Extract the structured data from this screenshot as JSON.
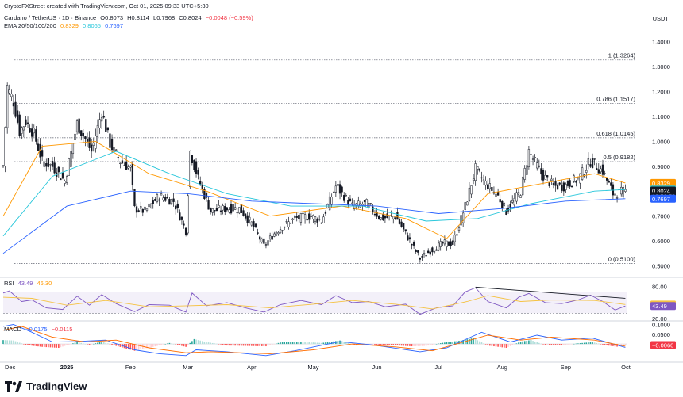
{
  "header": {
    "credit": "CryptoFXStreet created with TradingView.com, Oct 01, 2025 09:33 UTC+5:30",
    "symbol": "Cardano / TetherUS · 1D · Binance",
    "open": "O0.8073",
    "high": "H0.8114",
    "low": "L0.7968",
    "close": "C0.8024",
    "change": "−0.0048 (−0.59%)",
    "ema_label": "EMA 20/50/100/200",
    "ema_values": [
      "0.8329",
      "0.8065",
      "0.7697"
    ]
  },
  "currency": "USDT",
  "brand": "TradingView",
  "colors": {
    "up": "#131722",
    "down": "#131722",
    "ema20": "#ff9800",
    "ema50": "#26c6da",
    "ema100": "#2962ff",
    "ema200": "#3949ab",
    "rsi": "#7e57c2",
    "rsi_ma": "#f5c242",
    "macd": "#2962ff",
    "signal": "#ff6d00"
  },
  "chart_data": [
    {
      "type": "candlestick",
      "name": "Cardano / TetherUS 1D",
      "x_range": [
        "2024-12-01",
        "2025-10-01"
      ],
      "ylim": [
        0.47,
        1.44
      ],
      "yticks": [
        "1.4000",
        "1.3000",
        "1.2000",
        "1.1000",
        "1.0000",
        "0.9000",
        "0.8000",
        "0.7000",
        "0.6000",
        "0.5000"
      ],
      "xticks": [
        "Dec",
        "2025",
        "Feb",
        "Mar",
        "Apr",
        "May",
        "Jun",
        "Jul",
        "Aug",
        "Sep",
        "Oct"
      ],
      "close_path": [
        [
          "2024-12-01",
          0.9
        ],
        [
          "2024-12-03",
          1.22
        ],
        [
          "2024-12-06",
          1.16
        ],
        [
          "2024-12-09",
          1.04
        ],
        [
          "2024-12-12",
          1.08
        ],
        [
          "2024-12-16",
          1.03
        ],
        [
          "2024-12-20",
          0.92
        ],
        [
          "2024-12-25",
          0.9
        ],
        [
          "2024-12-31",
          0.84
        ],
        [
          "2025-01-06",
          1.07
        ],
        [
          "2025-01-13",
          0.96
        ],
        [
          "2025-01-18",
          1.12
        ],
        [
          "2025-01-22",
          0.99
        ],
        [
          "2025-01-27",
          0.92
        ],
        [
          "2025-02-01",
          0.89
        ],
        [
          "2025-02-03",
          0.73
        ],
        [
          "2025-02-08",
          0.72
        ],
        [
          "2025-02-15",
          0.78
        ],
        [
          "2025-02-22",
          0.76
        ],
        [
          "2025-02-28",
          0.64
        ],
        [
          "2025-03-02",
          0.96
        ],
        [
          "2025-03-06",
          0.85
        ],
        [
          "2025-03-12",
          0.72
        ],
        [
          "2025-03-19",
          0.73
        ],
        [
          "2025-03-26",
          0.73
        ],
        [
          "2025-04-01",
          0.67
        ],
        [
          "2025-04-07",
          0.58
        ],
        [
          "2025-04-13",
          0.64
        ],
        [
          "2025-04-22",
          0.69
        ],
        [
          "2025-04-30",
          0.7
        ],
        [
          "2025-05-05",
          0.68
        ],
        [
          "2025-05-12",
          0.82
        ],
        [
          "2025-05-20",
          0.74
        ],
        [
          "2025-05-27",
          0.75
        ],
        [
          "2025-06-03",
          0.69
        ],
        [
          "2025-06-10",
          0.7
        ],
        [
          "2025-06-17",
          0.6
        ],
        [
          "2025-06-22",
          0.53
        ],
        [
          "2025-06-27",
          0.56
        ],
        [
          "2025-07-03",
          0.59
        ],
        [
          "2025-07-08",
          0.59
        ],
        [
          "2025-07-14",
          0.74
        ],
        [
          "2025-07-19",
          0.89
        ],
        [
          "2025-07-23",
          0.84
        ],
        [
          "2025-07-30",
          0.78
        ],
        [
          "2025-08-03",
          0.72
        ],
        [
          "2025-08-10",
          0.8
        ],
        [
          "2025-08-14",
          0.96
        ],
        [
          "2025-08-20",
          0.87
        ],
        [
          "2025-08-26",
          0.82
        ],
        [
          "2025-08-31",
          0.82
        ],
        [
          "2025-09-07",
          0.85
        ],
        [
          "2025-09-13",
          0.92
        ],
        [
          "2025-09-19",
          0.88
        ],
        [
          "2025-09-24",
          0.79
        ],
        [
          "2025-09-30",
          0.8
        ]
      ],
      "series": [
        {
          "name": "EMA 20",
          "values": [
            [
              "2024-12-01",
              0.7
            ],
            [
              "2024-12-20",
              0.98
            ],
            [
              "2025-01-15",
              1.0
            ],
            [
              "2025-02-10",
              0.87
            ],
            [
              "2025-03-10",
              0.8
            ],
            [
              "2025-04-10",
              0.7
            ],
            [
              "2025-05-15",
              0.74
            ],
            [
              "2025-06-15",
              0.69
            ],
            [
              "2025-07-05",
              0.61
            ],
            [
              "2025-07-25",
              0.79
            ],
            [
              "2025-08-20",
              0.83
            ],
            [
              "2025-09-15",
              0.87
            ],
            [
              "2025-09-30",
              0.8329
            ]
          ]
        },
        {
          "name": "EMA 50",
          "values": [
            [
              "2024-12-01",
              0.62
            ],
            [
              "2024-12-25",
              0.86
            ],
            [
              "2025-01-25",
              0.96
            ],
            [
              "2025-02-20",
              0.87
            ],
            [
              "2025-03-20",
              0.79
            ],
            [
              "2025-04-20",
              0.74
            ],
            [
              "2025-05-25",
              0.74
            ],
            [
              "2025-06-25",
              0.68
            ],
            [
              "2025-07-20",
              0.69
            ],
            [
              "2025-08-15",
              0.75
            ],
            [
              "2025-09-15",
              0.8
            ],
            [
              "2025-09-30",
              0.8065
            ]
          ]
        },
        {
          "name": "EMA 100",
          "values": [
            [
              "2024-12-01",
              0.55
            ],
            [
              "2025-01-01",
              0.74
            ],
            [
              "2025-02-01",
              0.8
            ],
            [
              "2025-03-01",
              0.79
            ],
            [
              "2025-04-01",
              0.76
            ],
            [
              "2025-05-01",
              0.75
            ],
            [
              "2025-06-01",
              0.74
            ],
            [
              "2025-07-01",
              0.71
            ],
            [
              "2025-08-01",
              0.73
            ],
            [
              "2025-09-01",
              0.76
            ],
            [
              "2025-09-30",
              0.7697
            ]
          ]
        }
      ],
      "fibonacci": [
        {
          "label": "1 (1.3264)",
          "value": 1.3264
        },
        {
          "label": "0.786 (1.1517)",
          "value": 1.1517
        },
        {
          "label": "0.618 (1.0145)",
          "value": 1.0145
        },
        {
          "label": "0.5 (0.9182)",
          "value": 0.9182
        },
        {
          "label": "0 (0.5100)",
          "value": 0.51
        }
      ],
      "price_labels": [
        {
          "text": "0.8329",
          "value": 0.8329,
          "bg": "#ff9800",
          "fg": "#ffffff"
        },
        {
          "text": "0.8065",
          "value": 0.8065,
          "bg": "#26c6da",
          "fg": "#131722"
        },
        {
          "text": "0.8024",
          "value": 0.8024,
          "bg": "#131722",
          "fg": "#ffffff"
        },
        {
          "text": "19:56:53",
          "value": 0.7805,
          "bg": "#131722",
          "fg": "#ffffff"
        },
        {
          "text": "0.7697",
          "value": 0.7697,
          "bg": "#2962ff",
          "fg": "#ffffff"
        }
      ]
    },
    {
      "type": "line",
      "name": "RSI",
      "legend": [
        "RSI",
        "43.49",
        "46.30"
      ],
      "ylim": [
        20,
        90
      ],
      "yticks": [
        "80.00",
        "20.00"
      ],
      "band": [
        30,
        70
      ],
      "labels": [
        {
          "text": "46.30",
          "value": 46.3,
          "bg": "#f5c242",
          "fg": "#131722"
        },
        {
          "text": "43.49",
          "value": 43.49,
          "bg": "#7e57c2",
          "fg": "#ffffff"
        }
      ],
      "rsi": [
        [
          "2024-12-01",
          68
        ],
        [
          "2024-12-04",
          72
        ],
        [
          "2024-12-10",
          52
        ],
        [
          "2024-12-15",
          55
        ],
        [
          "2024-12-22",
          40
        ],
        [
          "2024-12-30",
          37
        ],
        [
          "2025-01-06",
          62
        ],
        [
          "2025-01-12",
          45
        ],
        [
          "2025-01-18",
          65
        ],
        [
          "2025-01-25",
          48
        ],
        [
          "2025-02-03",
          33
        ],
        [
          "2025-02-10",
          46
        ],
        [
          "2025-02-20",
          45
        ],
        [
          "2025-02-28",
          32
        ],
        [
          "2025-03-03",
          68
        ],
        [
          "2025-03-10",
          44
        ],
        [
          "2025-03-20",
          50
        ],
        [
          "2025-03-29",
          40
        ],
        [
          "2025-04-07",
          32
        ],
        [
          "2025-04-15",
          46
        ],
        [
          "2025-04-25",
          54
        ],
        [
          "2025-05-05",
          46
        ],
        [
          "2025-05-12",
          63
        ],
        [
          "2025-05-20",
          50
        ],
        [
          "2025-05-28",
          52
        ],
        [
          "2025-06-05",
          42
        ],
        [
          "2025-06-15",
          47
        ],
        [
          "2025-06-22",
          28
        ],
        [
          "2025-06-30",
          40
        ],
        [
          "2025-07-08",
          44
        ],
        [
          "2025-07-14",
          70
        ],
        [
          "2025-07-19",
          78
        ],
        [
          "2025-07-25",
          52
        ],
        [
          "2025-08-03",
          40
        ],
        [
          "2025-08-09",
          60
        ],
        [
          "2025-08-14",
          67
        ],
        [
          "2025-08-22",
          50
        ],
        [
          "2025-08-30",
          48
        ],
        [
          "2025-09-07",
          55
        ],
        [
          "2025-09-13",
          64
        ],
        [
          "2025-09-19",
          52
        ],
        [
          "2025-09-25",
          36
        ],
        [
          "2025-09-30",
          43.49
        ]
      ],
      "rsi_ma": [
        [
          "2024-12-01",
          60
        ],
        [
          "2024-12-15",
          58
        ],
        [
          "2025-01-01",
          45
        ],
        [
          "2025-01-20",
          54
        ],
        [
          "2025-02-10",
          42
        ],
        [
          "2025-03-01",
          44
        ],
        [
          "2025-03-20",
          46
        ],
        [
          "2025-04-10",
          40
        ],
        [
          "2025-05-01",
          47
        ],
        [
          "2025-05-20",
          54
        ],
        [
          "2025-06-10",
          47
        ],
        [
          "2025-06-28",
          38
        ],
        [
          "2025-07-15",
          52
        ],
        [
          "2025-07-25",
          63
        ],
        [
          "2025-08-10",
          52
        ],
        [
          "2025-08-25",
          55
        ],
        [
          "2025-09-15",
          54
        ],
        [
          "2025-09-30",
          46.3
        ]
      ],
      "trendline": [
        [
          "2025-07-19",
          79
        ],
        [
          "2025-09-30",
          58
        ]
      ]
    },
    {
      "type": "bar",
      "name": "MACD",
      "legend": [
        "MACD",
        "−0.0175",
        "−0.0115"
      ],
      "ylim": [
        -0.085,
        0.11
      ],
      "yticks": [
        "0.1000",
        "0.0500",
        "0.0000"
      ],
      "labels": [
        {
          "text": "−0.0060",
          "value": -0.006,
          "bg": "#f23645",
          "fg": "#ffffff"
        }
      ],
      "histogram": [
        [
          "2024-12-01",
          0.02
        ],
        [
          "2024-12-06",
          0.018
        ],
        [
          "2024-12-12",
          -0.005
        ],
        [
          "2024-12-20",
          -0.015
        ],
        [
          "2024-12-28",
          -0.02
        ],
        [
          "2025-01-06",
          0.01
        ],
        [
          "2025-01-12",
          -0.005
        ],
        [
          "2025-01-18",
          0.012
        ],
        [
          "2025-01-25",
          -0.01
        ],
        [
          "2025-02-03",
          -0.035
        ],
        [
          "2025-02-12",
          -0.015
        ],
        [
          "2025-02-20",
          0.005
        ],
        [
          "2025-02-28",
          -0.015
        ],
        [
          "2025-03-04",
          0.025
        ],
        [
          "2025-03-10",
          0.01
        ],
        [
          "2025-03-20",
          -0.008
        ],
        [
          "2025-03-30",
          -0.01
        ],
        [
          "2025-04-08",
          -0.012
        ],
        [
          "2025-04-15",
          0.008
        ],
        [
          "2025-04-25",
          0.012
        ],
        [
          "2025-05-05",
          0.005
        ],
        [
          "2025-05-14",
          0.018
        ],
        [
          "2025-05-22",
          -0.008
        ],
        [
          "2025-05-30",
          -0.005
        ],
        [
          "2025-06-08",
          -0.006
        ],
        [
          "2025-06-18",
          -0.012
        ],
        [
          "2025-06-25",
          -0.01
        ],
        [
          "2025-07-03",
          0.006
        ],
        [
          "2025-07-12",
          0.018
        ],
        [
          "2025-07-18",
          0.03
        ],
        [
          "2025-07-25",
          -0.008
        ],
        [
          "2025-08-03",
          -0.02
        ],
        [
          "2025-08-10",
          0.012
        ],
        [
          "2025-08-15",
          0.02
        ],
        [
          "2025-08-22",
          -0.006
        ],
        [
          "2025-08-30",
          -0.006
        ],
        [
          "2025-09-08",
          0.004
        ],
        [
          "2025-09-14",
          0.01
        ],
        [
          "2025-09-20",
          -0.006
        ],
        [
          "2025-09-26",
          -0.014
        ],
        [
          "2025-09-30",
          -0.006
        ]
      ],
      "macd": [
        [
          "2024-12-01",
          0.09
        ],
        [
          "2024-12-06",
          0.1
        ],
        [
          "2024-12-15",
          0.06
        ],
        [
          "2024-12-25",
          0.01
        ],
        [
          "2025-01-05",
          0.012
        ],
        [
          "2025-01-20",
          0.02
        ],
        [
          "2025-02-03",
          -0.03
        ],
        [
          "2025-02-15",
          -0.05
        ],
        [
          "2025-02-28",
          -0.06
        ],
        [
          "2025-03-05",
          -0.03
        ],
        [
          "2025-03-20",
          -0.04
        ],
        [
          "2025-04-08",
          -0.06
        ],
        [
          "2025-04-22",
          -0.035
        ],
        [
          "2025-05-14",
          0.012
        ],
        [
          "2025-05-30",
          -0.005
        ],
        [
          "2025-06-22",
          -0.04
        ],
        [
          "2025-07-05",
          -0.02
        ],
        [
          "2025-07-22",
          0.06
        ],
        [
          "2025-08-05",
          0.01
        ],
        [
          "2025-08-18",
          0.045
        ],
        [
          "2025-08-30",
          0.02
        ],
        [
          "2025-09-14",
          0.03
        ],
        [
          "2025-09-30",
          -0.0175
        ]
      ],
      "signal": [
        [
          "2024-12-01",
          0.07
        ],
        [
          "2024-12-10",
          0.09
        ],
        [
          "2024-12-25",
          0.035
        ],
        [
          "2025-01-10",
          0.01
        ],
        [
          "2025-01-25",
          0.02
        ],
        [
          "2025-02-10",
          -0.02
        ],
        [
          "2025-02-28",
          -0.045
        ],
        [
          "2025-03-12",
          -0.04
        ],
        [
          "2025-04-10",
          -0.05
        ],
        [
          "2025-05-01",
          -0.03
        ],
        [
          "2025-05-20",
          0.0
        ],
        [
          "2025-06-10",
          -0.015
        ],
        [
          "2025-06-28",
          -0.035
        ],
        [
          "2025-07-25",
          0.045
        ],
        [
          "2025-08-10",
          0.02
        ],
        [
          "2025-08-25",
          0.035
        ],
        [
          "2025-09-15",
          0.02
        ],
        [
          "2025-09-30",
          -0.0115
        ]
      ]
    }
  ]
}
